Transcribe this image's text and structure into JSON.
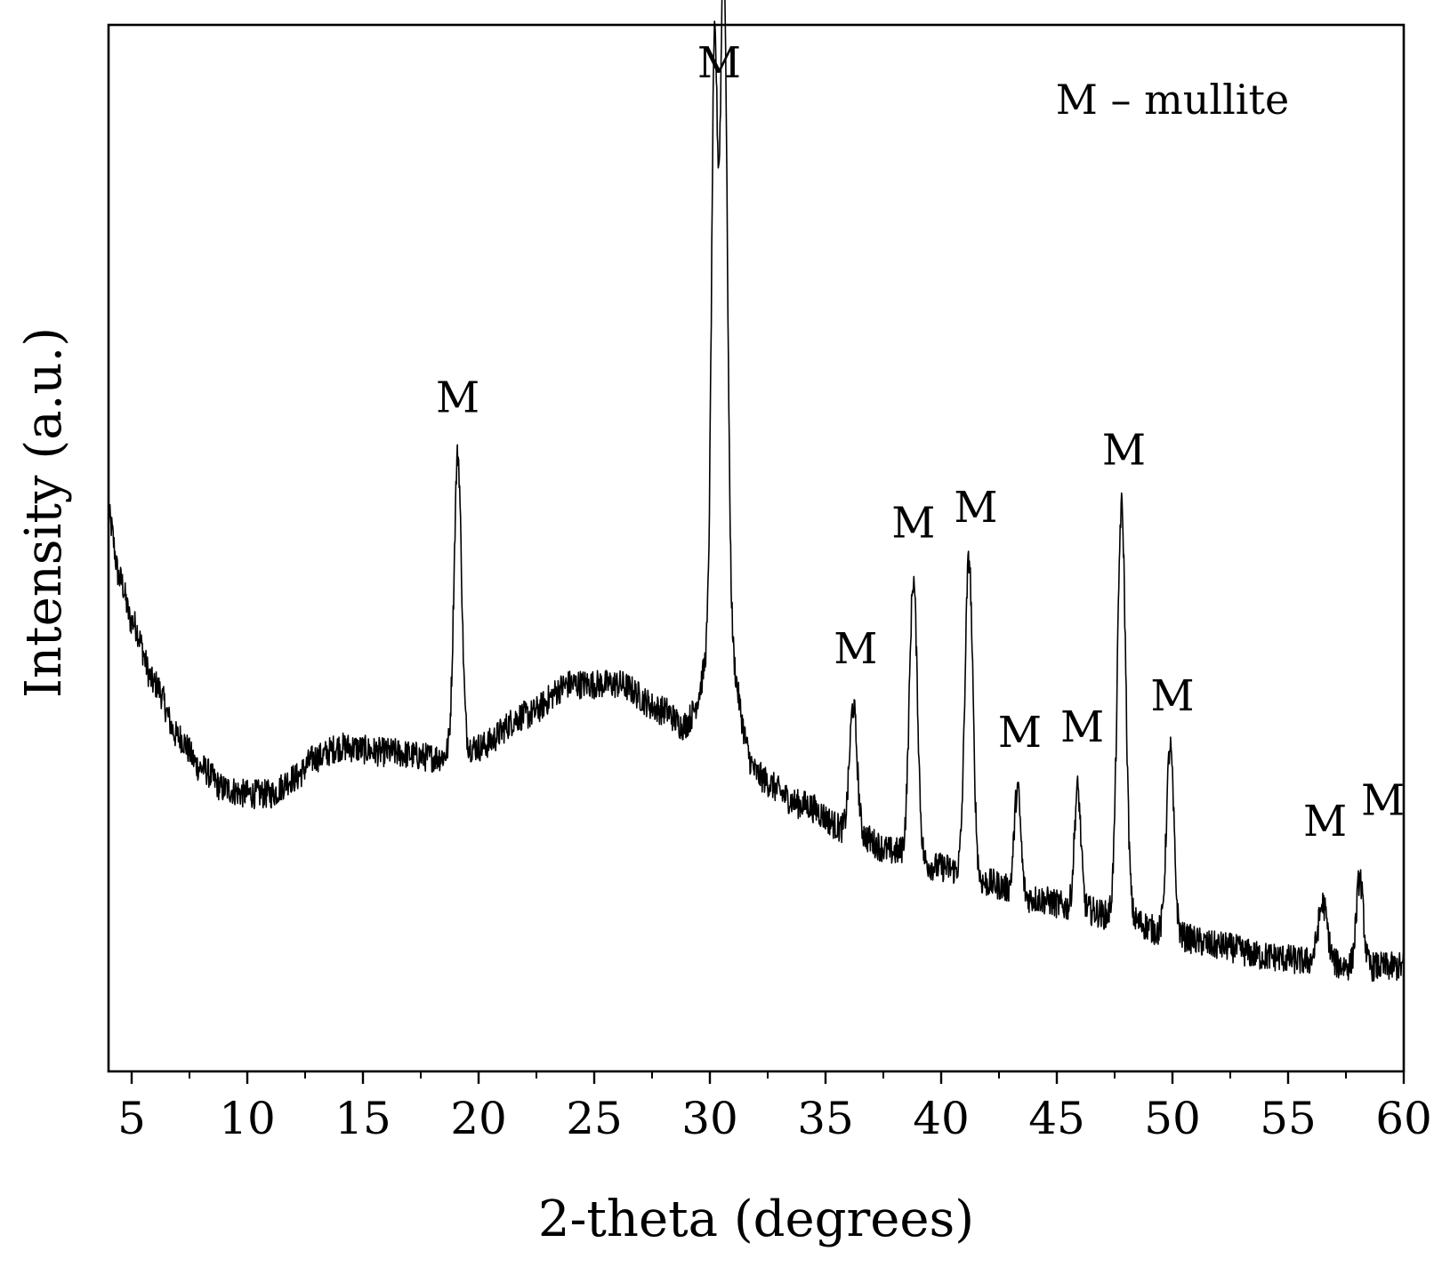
{
  "chart_data": {
    "type": "line",
    "title": "",
    "xlabel": "2-theta (degrees)",
    "ylabel": "Intensity (a.u.)",
    "xlim": [
      4,
      60
    ],
    "ylim": [
      0,
      100
    ],
    "x_ticks": [
      5,
      10,
      15,
      20,
      25,
      30,
      35,
      40,
      45,
      50,
      55,
      60
    ],
    "x_tick_labels": [
      "5",
      "10",
      "15",
      "20",
      "25",
      "30",
      "35",
      "40",
      "45",
      "50",
      "55",
      "60"
    ],
    "x_minor_step": 2.5,
    "y_ticks_shown": false,
    "grid": false,
    "line_color": "#000000",
    "legend_text": "M – mullite",
    "legend_position": "top-right",
    "series": [
      {
        "baseline": [
          [
            4,
            53
          ],
          [
            4.5,
            47
          ],
          [
            5,
            43
          ],
          [
            6,
            37
          ],
          [
            7,
            32
          ],
          [
            8,
            29
          ],
          [
            9,
            27
          ],
          [
            10,
            26.5
          ],
          [
            11,
            26.5
          ],
          [
            12,
            28
          ],
          [
            13,
            30
          ],
          [
            14,
            31
          ],
          [
            16,
            30.5
          ],
          [
            18,
            30
          ],
          [
            20,
            31
          ],
          [
            22,
            34
          ],
          [
            24,
            37
          ],
          [
            26,
            37
          ],
          [
            28,
            34.5
          ],
          [
            29,
            32.5
          ],
          [
            30,
            31
          ],
          [
            31,
            30
          ],
          [
            32,
            28
          ],
          [
            34,
            25.5
          ],
          [
            36,
            23
          ],
          [
            38,
            21
          ],
          [
            40,
            19.5
          ],
          [
            42,
            18
          ],
          [
            44,
            16.5
          ],
          [
            46,
            15.5
          ],
          [
            48,
            14.5
          ],
          [
            50,
            13
          ],
          [
            52,
            12
          ],
          [
            54,
            11
          ],
          [
            56,
            10.5
          ],
          [
            58,
            10
          ],
          [
            60,
            10
          ]
        ],
        "peaks": [
          {
            "x": 19.1,
            "y": 59,
            "w": 0.16
          },
          {
            "x": 30.2,
            "y": 84,
            "w": 0.13
          },
          {
            "x": 30.6,
            "y": 93,
            "w": 0.15
          },
          {
            "x": 30.45,
            "y": 45,
            "w": 0.6
          },
          {
            "x": 36.2,
            "y": 35,
            "w": 0.16
          },
          {
            "x": 38.8,
            "y": 47,
            "w": 0.17
          },
          {
            "x": 41.2,
            "y": 49,
            "w": 0.17
          },
          {
            "x": 43.3,
            "y": 27,
            "w": 0.14
          },
          {
            "x": 45.9,
            "y": 27,
            "w": 0.14
          },
          {
            "x": 47.8,
            "y": 54,
            "w": 0.18
          },
          {
            "x": 49.9,
            "y": 31,
            "w": 0.16
          },
          {
            "x": 56.5,
            "y": 16,
            "w": 0.2
          },
          {
            "x": 58.1,
            "y": 18.5,
            "w": 0.15
          }
        ],
        "noise_amplitude": 1.4
      }
    ],
    "annotations": [
      {
        "text": "M",
        "x": 19.1,
        "y": 63
      },
      {
        "text": "M",
        "x": 30.4,
        "y": 95
      },
      {
        "text": "M",
        "x": 36.3,
        "y": 39
      },
      {
        "text": "M",
        "x": 38.8,
        "y": 51
      },
      {
        "text": "M",
        "x": 41.5,
        "y": 52.5
      },
      {
        "text": "M",
        "x": 43.4,
        "y": 31
      },
      {
        "text": "M",
        "x": 46.1,
        "y": 31.5
      },
      {
        "text": "M",
        "x": 47.9,
        "y": 58
      },
      {
        "text": "M",
        "x": 50.0,
        "y": 34.5
      },
      {
        "text": "M",
        "x": 56.6,
        "y": 22.5
      },
      {
        "text": "M",
        "x": 59.1,
        "y": 24.5
      }
    ]
  }
}
